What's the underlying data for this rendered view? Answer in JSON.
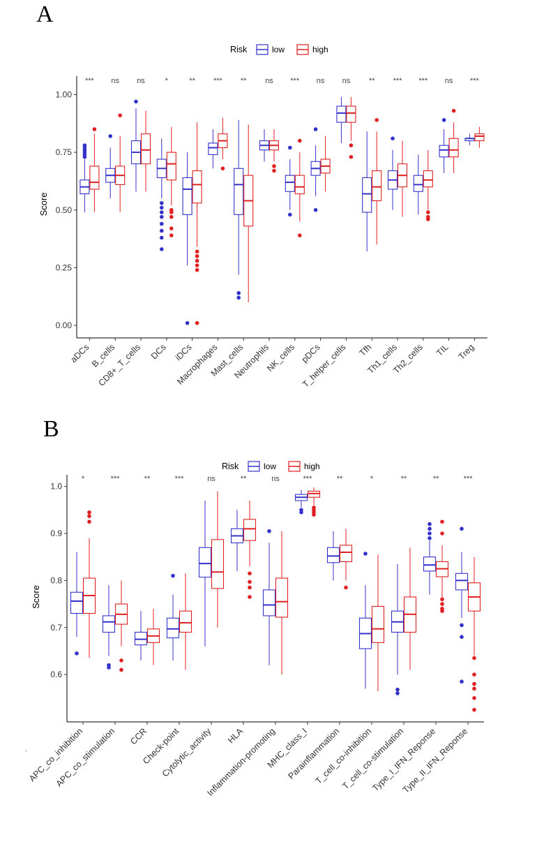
{
  "panels": {
    "A": {
      "letter": "A"
    },
    "B": {
      "letter": "B"
    }
  },
  "legend": {
    "title": "Risk",
    "entries": [
      {
        "label": "low",
        "color": "#3333cc"
      },
      {
        "label": "high",
        "color": "#e02020"
      }
    ]
  },
  "stray_mark": ".",
  "chart_data": [
    {
      "type": "box",
      "panel": "A",
      "ylabel": "Score",
      "xlabel": "",
      "ylim": [
        0,
        1.05
      ],
      "yticks": [
        "0.00",
        "0.25",
        "0.50",
        "0.75",
        "1.00"
      ],
      "ytick_values": [
        0,
        0.25,
        0.5,
        0.75,
        1.0
      ],
      "categories": [
        "aDCs",
        "B_cells",
        "CD8+_T_cells",
        "DCs",
        "iDCs",
        "Macrophages",
        "Mast_cells",
        "Neutrophils",
        "NK_cells",
        "pDCs",
        "T_helper_cells",
        "Tfh",
        "Th1_cells",
        "Th2_cells",
        "TIL",
        "Treg"
      ],
      "significance": [
        "***",
        "ns",
        "ns",
        "*",
        "**",
        "***",
        "**",
        "ns",
        "***",
        "ns",
        "ns",
        "**",
        "***",
        "***",
        "ns",
        "***"
      ],
      "series": [
        {
          "name": "low",
          "color": "#3333cc",
          "boxes": [
            {
              "min": 0.49,
              "q1": 0.57,
              "median": 0.6,
              "q3": 0.63,
              "max": 0.72,
              "outliers": [
                0.73,
                0.74,
                0.75,
                0.76,
                0.77,
                0.78
              ]
            },
            {
              "min": 0.55,
              "q1": 0.62,
              "median": 0.65,
              "q3": 0.68,
              "max": 0.77,
              "outliers": [
                0.82
              ]
            },
            {
              "min": 0.58,
              "q1": 0.7,
              "median": 0.75,
              "q3": 0.8,
              "max": 0.94,
              "outliers": [
                0.97
              ]
            },
            {
              "min": 0.55,
              "q1": 0.64,
              "median": 0.68,
              "q3": 0.72,
              "max": 0.81,
              "outliers": [
                0.33,
                0.38,
                0.41,
                0.44,
                0.47,
                0.49,
                0.51,
                0.53
              ]
            },
            {
              "min": 0.26,
              "q1": 0.48,
              "median": 0.59,
              "q3": 0.64,
              "max": 0.75,
              "outliers": [
                0.01
              ]
            },
            {
              "min": 0.68,
              "q1": 0.74,
              "median": 0.77,
              "q3": 0.79,
              "max": 0.85,
              "outliers": []
            },
            {
              "min": 0.22,
              "q1": 0.48,
              "median": 0.61,
              "q3": 0.68,
              "max": 0.89,
              "outliers": [
                0.12,
                0.14
              ]
            },
            {
              "min": 0.71,
              "q1": 0.76,
              "median": 0.78,
              "q3": 0.8,
              "max": 0.85,
              "outliers": []
            },
            {
              "min": 0.5,
              "q1": 0.58,
              "median": 0.62,
              "q3": 0.65,
              "max": 0.72,
              "outliers": [
                0.48,
                0.77
              ]
            },
            {
              "min": 0.56,
              "q1": 0.65,
              "median": 0.68,
              "q3": 0.71,
              "max": 0.78,
              "outliers": [
                0.5,
                0.85
              ]
            },
            {
              "min": 0.79,
              "q1": 0.88,
              "median": 0.92,
              "q3": 0.95,
              "max": 0.99,
              "outliers": []
            },
            {
              "min": 0.32,
              "q1": 0.49,
              "median": 0.57,
              "q3": 0.64,
              "max": 0.84,
              "outliers": []
            },
            {
              "min": 0.5,
              "q1": 0.59,
              "median": 0.63,
              "q3": 0.67,
              "max": 0.76,
              "outliers": [
                0.81
              ]
            },
            {
              "min": 0.48,
              "q1": 0.58,
              "median": 0.61,
              "q3": 0.65,
              "max": 0.74,
              "outliers": []
            },
            {
              "min": 0.66,
              "q1": 0.73,
              "median": 0.76,
              "q3": 0.78,
              "max": 0.85,
              "outliers": [
                0.89
              ]
            },
            {
              "min": 0.78,
              "q1": 0.8,
              "median": 0.81,
              "q3": 0.81,
              "max": 0.83,
              "outliers": []
            }
          ]
        },
        {
          "name": "high",
          "color": "#e02020",
          "boxes": [
            {
              "min": 0.49,
              "q1": 0.59,
              "median": 0.62,
              "q3": 0.69,
              "max": 0.83,
              "outliers": [
                0.85
              ]
            },
            {
              "min": 0.49,
              "q1": 0.61,
              "median": 0.65,
              "q3": 0.69,
              "max": 0.82,
              "outliers": [
                0.91
              ]
            },
            {
              "min": 0.58,
              "q1": 0.7,
              "median": 0.76,
              "q3": 0.83,
              "max": 0.93,
              "outliers": []
            },
            {
              "min": 0.52,
              "q1": 0.63,
              "median": 0.7,
              "q3": 0.75,
              "max": 0.86,
              "outliers": [
                0.39,
                0.42,
                0.47,
                0.49,
                0.5
              ]
            },
            {
              "min": 0.34,
              "q1": 0.53,
              "median": 0.61,
              "q3": 0.67,
              "max": 0.88,
              "outliers": [
                0.01,
                0.24,
                0.26,
                0.28,
                0.3,
                0.32
              ]
            },
            {
              "min": 0.72,
              "q1": 0.77,
              "median": 0.8,
              "q3": 0.83,
              "max": 0.9,
              "outliers": [
                0.68
              ]
            },
            {
              "min": 0.1,
              "q1": 0.43,
              "median": 0.54,
              "q3": 0.65,
              "max": 0.87,
              "outliers": []
            },
            {
              "min": 0.71,
              "q1": 0.76,
              "median": 0.78,
              "q3": 0.8,
              "max": 0.85,
              "outliers": [
                0.67,
                0.69
              ]
            },
            {
              "min": 0.45,
              "q1": 0.57,
              "median": 0.6,
              "q3": 0.65,
              "max": 0.75,
              "outliers": [
                0.39,
                0.8
              ]
            },
            {
              "min": 0.58,
              "q1": 0.66,
              "median": 0.69,
              "q3": 0.72,
              "max": 0.82,
              "outliers": []
            },
            {
              "min": 0.8,
              "q1": 0.88,
              "median": 0.92,
              "q3": 0.95,
              "max": 0.99,
              "outliers": [
                0.73,
                0.78
              ]
            },
            {
              "min": 0.35,
              "q1": 0.54,
              "median": 0.6,
              "q3": 0.67,
              "max": 0.84,
              "outliers": [
                0.89
              ]
            },
            {
              "min": 0.47,
              "q1": 0.6,
              "median": 0.65,
              "q3": 0.7,
              "max": 0.8,
              "outliers": []
            },
            {
              "min": 0.5,
              "q1": 0.6,
              "median": 0.63,
              "q3": 0.67,
              "max": 0.76,
              "outliers": [
                0.46,
                0.47,
                0.49
              ]
            },
            {
              "min": 0.66,
              "q1": 0.73,
              "median": 0.76,
              "q3": 0.81,
              "max": 0.88,
              "outliers": [
                0.93
              ]
            },
            {
              "min": 0.77,
              "q1": 0.8,
              "median": 0.82,
              "q3": 0.83,
              "max": 0.86,
              "outliers": []
            }
          ]
        }
      ]
    },
    {
      "type": "box",
      "panel": "B",
      "ylabel": "Score",
      "xlabel": "",
      "ylim": [
        0.52,
        1.01
      ],
      "yticks": [
        "0.6",
        "0.7",
        "0.8",
        "0.9",
        "1.0"
      ],
      "ytick_values": [
        0.6,
        0.7,
        0.8,
        0.9,
        1.0
      ],
      "categories": [
        "APC_co_inhibition",
        "APC_co_stimulation",
        "CCR",
        "Check-point",
        "Cytolytic_activity",
        "HLA",
        "Inflammation-promoting",
        "MHC_class_I",
        "Parainflammation",
        "T_cell_co-inhibition",
        "T_cell_co-stimulation",
        "Type_I_IFN_Reponse",
        "Type_II_IFN_Reponse"
      ],
      "significance": [
        "*",
        "***",
        "**",
        "***",
        "ns",
        "**",
        "ns",
        "***",
        "**",
        "*",
        "**",
        "**",
        "***"
      ],
      "series": [
        {
          "name": "low",
          "color": "#3333cc",
          "boxes": [
            {
              "min": 0.68,
              "q1": 0.73,
              "median": 0.756,
              "q3": 0.775,
              "max": 0.86,
              "outliers": [
                0.645
              ]
            },
            {
              "min": 0.64,
              "q1": 0.69,
              "median": 0.712,
              "q3": 0.725,
              "max": 0.79,
              "outliers": [
                0.615,
                0.62
              ]
            },
            {
              "min": 0.63,
              "q1": 0.663,
              "median": 0.675,
              "q3": 0.69,
              "max": 0.735,
              "outliers": []
            },
            {
              "min": 0.63,
              "q1": 0.678,
              "median": 0.697,
              "q3": 0.72,
              "max": 0.77,
              "outliers": [
                0.81
              ]
            },
            {
              "min": 0.66,
              "q1": 0.807,
              "median": 0.836,
              "q3": 0.87,
              "max": 0.97,
              "outliers": []
            },
            {
              "min": 0.82,
              "q1": 0.88,
              "median": 0.895,
              "q3": 0.91,
              "max": 0.95,
              "outliers": []
            },
            {
              "min": 0.62,
              "q1": 0.725,
              "median": 0.748,
              "q3": 0.78,
              "max": 0.88,
              "outliers": [
                0.905
              ]
            },
            {
              "min": 0.955,
              "q1": 0.97,
              "median": 0.977,
              "q3": 0.983,
              "max": 0.993,
              "outliers": [
                0.945,
                0.95
              ]
            },
            {
              "min": 0.8,
              "q1": 0.838,
              "median": 0.852,
              "q3": 0.87,
              "max": 0.905,
              "outliers": []
            },
            {
              "min": 0.57,
              "q1": 0.655,
              "median": 0.687,
              "q3": 0.72,
              "max": 0.79,
              "outliers": [
                0.857
              ]
            },
            {
              "min": 0.6,
              "q1": 0.69,
              "median": 0.712,
              "q3": 0.735,
              "max": 0.835,
              "outliers": [
                0.56,
                0.568
              ]
            },
            {
              "min": 0.77,
              "q1": 0.82,
              "median": 0.833,
              "q3": 0.85,
              "max": 0.885,
              "outliers": [
                0.89,
                0.9,
                0.91,
                0.92
              ]
            },
            {
              "min": 0.72,
              "q1": 0.78,
              "median": 0.8,
              "q3": 0.815,
              "max": 0.86,
              "outliers": [
                0.585,
                0.68,
                0.705,
                0.91
              ]
            }
          ]
        },
        {
          "name": "high",
          "color": "#e02020",
          "boxes": [
            {
              "min": 0.635,
              "q1": 0.73,
              "median": 0.768,
              "q3": 0.805,
              "max": 0.89,
              "outliers": [
                0.925,
                0.937,
                0.945
              ]
            },
            {
              "min": 0.66,
              "q1": 0.707,
              "median": 0.728,
              "q3": 0.75,
              "max": 0.8,
              "outliers": [
                0.61,
                0.63
              ]
            },
            {
              "min": 0.62,
              "q1": 0.668,
              "median": 0.682,
              "q3": 0.697,
              "max": 0.74,
              "outliers": []
            },
            {
              "min": 0.61,
              "q1": 0.69,
              "median": 0.71,
              "q3": 0.735,
              "max": 0.815,
              "outliers": []
            },
            {
              "min": 0.7,
              "q1": 0.783,
              "median": 0.818,
              "q3": 0.887,
              "max": 0.99,
              "outliers": []
            },
            {
              "min": 0.83,
              "q1": 0.885,
              "median": 0.91,
              "q3": 0.93,
              "max": 0.97,
              "outliers": [
                0.765,
                0.785,
                0.797,
                0.815
              ]
            },
            {
              "min": 0.6,
              "q1": 0.722,
              "median": 0.755,
              "q3": 0.805,
              "max": 0.905,
              "outliers": []
            },
            {
              "min": 0.96,
              "q1": 0.977,
              "median": 0.985,
              "q3": 0.99,
              "max": 0.998,
              "outliers": [
                0.94,
                0.945,
                0.95,
                0.955
              ]
            },
            {
              "min": 0.8,
              "q1": 0.84,
              "median": 0.86,
              "q3": 0.875,
              "max": 0.91,
              "outliers": [
                0.785
              ]
            },
            {
              "min": 0.565,
              "q1": 0.668,
              "median": 0.697,
              "q3": 0.745,
              "max": 0.855,
              "outliers": []
            },
            {
              "min": 0.61,
              "q1": 0.69,
              "median": 0.728,
              "q3": 0.765,
              "max": 0.87,
              "outliers": []
            },
            {
              "min": 0.76,
              "q1": 0.808,
              "median": 0.825,
              "q3": 0.84,
              "max": 0.875,
              "outliers": [
                0.735,
                0.74,
                0.75,
                0.76,
                0.9,
                0.925
              ]
            },
            {
              "min": 0.64,
              "q1": 0.735,
              "median": 0.765,
              "q3": 0.795,
              "max": 0.85,
              "outliers": [
                0.525,
                0.55,
                0.57,
                0.58,
                0.6,
                0.635
              ]
            }
          ]
        }
      ]
    }
  ]
}
